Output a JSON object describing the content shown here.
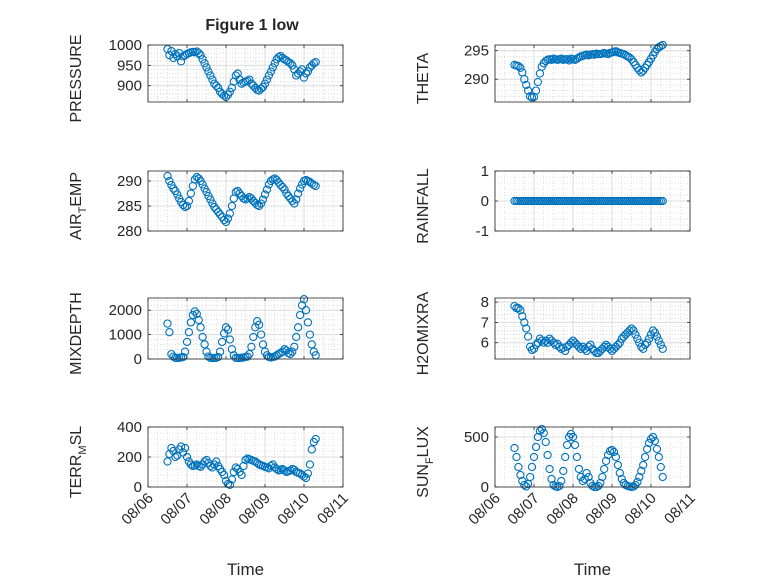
{
  "figure": {
    "title": "Figure 1 low"
  },
  "colors": {
    "marker": "#0072BD",
    "grid": "#dcdcdc",
    "axis": "#262626"
  },
  "x_ticks": [
    "08/06",
    "08/07",
    "08/08",
    "08/09",
    "08/10",
    "08/11"
  ],
  "chart_data": [
    {
      "id": "pressure",
      "type": "scatter",
      "ylabel": "PRESSURE",
      "xlabel": "",
      "ylim": [
        860,
        1000
      ],
      "yticks": [
        900,
        950,
        1000
      ],
      "grid": true,
      "minor_grid": true,
      "x": [
        6.5,
        6.55,
        6.6,
        6.65,
        6.7,
        6.75,
        6.8,
        6.85,
        6.9,
        6.95,
        7.0,
        7.05,
        7.1,
        7.15,
        7.2,
        7.25,
        7.3,
        7.35,
        7.4,
        7.45,
        7.5,
        7.55,
        7.6,
        7.65,
        7.7,
        7.75,
        7.8,
        7.85,
        7.9,
        7.95,
        8.0,
        8.05,
        8.1,
        8.15,
        8.2,
        8.25,
        8.3,
        8.35,
        8.4,
        8.45,
        8.5,
        8.55,
        8.6,
        8.65,
        8.7,
        8.75,
        8.8,
        8.85,
        8.9,
        8.95,
        9.0,
        9.05,
        9.1,
        9.15,
        9.2,
        9.25,
        9.3,
        9.35,
        9.4,
        9.45,
        9.5,
        9.55,
        9.6,
        9.65,
        9.7,
        9.75,
        9.8,
        9.85,
        9.9,
        9.95,
        10.0,
        10.05,
        10.1,
        10.15,
        10.2,
        10.25,
        10.3
      ],
      "y": [
        990,
        975,
        985,
        968,
        978,
        972,
        980,
        960,
        972,
        975,
        978,
        980,
        982,
        983,
        982,
        984,
        980,
        975,
        965,
        955,
        945,
        935,
        925,
        915,
        905,
        900,
        895,
        885,
        880,
        876,
        872,
        878,
        885,
        895,
        910,
        925,
        930,
        915,
        905,
        908,
        910,
        912,
        915,
        905,
        900,
        895,
        890,
        888,
        893,
        897,
        905,
        915,
        925,
        935,
        945,
        955,
        965,
        970,
        973,
        968,
        965,
        962,
        958,
        955,
        950,
        940,
        925,
        930,
        935,
        940,
        920,
        930,
        935,
        945,
        950,
        955,
        958
      ]
    },
    {
      "id": "theta",
      "type": "scatter",
      "ylabel": "THETA",
      "xlabel": "",
      "ylim": [
        286,
        296
      ],
      "yticks": [
        290,
        295
      ],
      "grid": true,
      "minor_grid": true,
      "x": [
        6.5,
        6.55,
        6.6,
        6.65,
        6.7,
        6.75,
        6.8,
        6.85,
        6.9,
        6.95,
        7.0,
        7.05,
        7.1,
        7.15,
        7.2,
        7.25,
        7.3,
        7.35,
        7.4,
        7.45,
        7.5,
        7.55,
        7.6,
        7.65,
        7.7,
        7.75,
        7.8,
        7.85,
        7.9,
        7.95,
        8.0,
        8.05,
        8.1,
        8.15,
        8.2,
        8.25,
        8.3,
        8.35,
        8.4,
        8.45,
        8.5,
        8.55,
        8.6,
        8.65,
        8.7,
        8.75,
        8.8,
        8.85,
        8.9,
        8.95,
        9.0,
        9.05,
        9.1,
        9.15,
        9.2,
        9.25,
        9.3,
        9.35,
        9.4,
        9.45,
        9.5,
        9.55,
        9.6,
        9.65,
        9.7,
        9.75,
        9.8,
        9.85,
        9.9,
        9.95,
        10.0,
        10.05,
        10.1,
        10.15,
        10.2,
        10.25,
        10.3
      ],
      "y": [
        292.5,
        292.4,
        292.3,
        292.0,
        291.2,
        290.0,
        289.0,
        288.0,
        287.0,
        286.8,
        286.9,
        288.0,
        289.5,
        291.0,
        292.2,
        292.8,
        293.2,
        293.4,
        293.5,
        293.4,
        293.6,
        293.5,
        293.4,
        293.5,
        293.6,
        293.4,
        293.5,
        293.5,
        293.3,
        293.6,
        293.5,
        293.4,
        293.6,
        293.8,
        294.0,
        294.1,
        294.2,
        294.3,
        294.2,
        294.3,
        294.4,
        294.3,
        294.5,
        294.4,
        294.4,
        294.5,
        294.6,
        294.5,
        294.4,
        294.6,
        294.7,
        294.8,
        294.9,
        294.7,
        294.6,
        294.5,
        294.4,
        294.2,
        294.0,
        293.8,
        293.5,
        293.0,
        292.5,
        292.0,
        291.6,
        291.2,
        291.5,
        292.0,
        292.5,
        293.0,
        293.6,
        294.2,
        294.8,
        295.3,
        295.6,
        295.8,
        296.0
      ]
    },
    {
      "id": "air-temp",
      "type": "scatter",
      "ylabel": "AIR_TEMP",
      "xlabel": "",
      "ylim": [
        280,
        292
      ],
      "yticks": [
        280,
        285,
        290
      ],
      "grid": true,
      "minor_grid": true,
      "x": [
        6.5,
        6.55,
        6.6,
        6.65,
        6.7,
        6.75,
        6.8,
        6.85,
        6.9,
        6.95,
        7.0,
        7.05,
        7.1,
        7.15,
        7.2,
        7.25,
        7.3,
        7.35,
        7.4,
        7.45,
        7.5,
        7.55,
        7.6,
        7.65,
        7.7,
        7.75,
        7.8,
        7.85,
        7.9,
        7.95,
        8.0,
        8.05,
        8.1,
        8.15,
        8.2,
        8.25,
        8.3,
        8.35,
        8.4,
        8.45,
        8.5,
        8.55,
        8.6,
        8.65,
        8.7,
        8.75,
        8.8,
        8.85,
        8.9,
        8.95,
        9.0,
        9.05,
        9.1,
        9.15,
        9.2,
        9.25,
        9.3,
        9.35,
        9.4,
        9.45,
        9.5,
        9.55,
        9.6,
        9.65,
        9.7,
        9.75,
        9.8,
        9.85,
        9.9,
        9.95,
        10.0,
        10.05,
        10.1,
        10.15,
        10.2,
        10.25,
        10.3
      ],
      "y": [
        291.0,
        290.0,
        289.2,
        288.5,
        288.0,
        287.3,
        286.5,
        285.8,
        285.2,
        284.8,
        285.0,
        286.0,
        287.5,
        289.0,
        290.3,
        290.8,
        290.5,
        290.0,
        289.3,
        288.5,
        287.8,
        287.0,
        286.3,
        285.5,
        284.8,
        284.3,
        283.8,
        283.3,
        282.8,
        282.2,
        281.8,
        282.5,
        283.5,
        285.0,
        286.5,
        287.8,
        288.0,
        287.5,
        287.0,
        286.5,
        286.3,
        286.5,
        286.8,
        286.5,
        286.0,
        285.6,
        285.2,
        285.0,
        285.5,
        286.3,
        287.3,
        288.3,
        289.3,
        290.0,
        290.3,
        290.5,
        290.2,
        289.7,
        289.2,
        288.8,
        288.3,
        287.5,
        287.0,
        286.5,
        286.0,
        285.5,
        286.3,
        287.5,
        288.5,
        289.3,
        290.0,
        290.2,
        290.0,
        289.8,
        289.5,
        289.2,
        289.0
      ]
    },
    {
      "id": "rainfall",
      "type": "scatter",
      "ylabel": "RAINFALL",
      "xlabel": "",
      "ylim": [
        -1,
        1
      ],
      "yticks": [
        -1,
        0,
        1
      ],
      "grid": true,
      "minor_grid": true,
      "x_start": 6.5,
      "x_end": 10.3,
      "x_step": 0.05,
      "constant_y": 0
    },
    {
      "id": "mixdepth",
      "type": "scatter",
      "ylabel": "MIXDEPTH",
      "xlabel": "",
      "ylim": [
        0,
        2500
      ],
      "yticks": [
        0,
        1000,
        2000
      ],
      "grid": true,
      "minor_grid": true,
      "x": [
        6.5,
        6.55,
        6.6,
        6.65,
        6.7,
        6.75,
        6.8,
        6.85,
        6.9,
        6.95,
        7.0,
        7.05,
        7.1,
        7.15,
        7.2,
        7.25,
        7.3,
        7.35,
        7.4,
        7.45,
        7.5,
        7.55,
        7.6,
        7.65,
        7.7,
        7.75,
        7.8,
        7.85,
        7.9,
        7.95,
        8.0,
        8.05,
        8.1,
        8.15,
        8.2,
        8.25,
        8.3,
        8.35,
        8.4,
        8.45,
        8.5,
        8.55,
        8.6,
        8.65,
        8.7,
        8.75,
        8.8,
        8.85,
        8.9,
        8.95,
        9.0,
        9.05,
        9.1,
        9.15,
        9.2,
        9.25,
        9.3,
        9.35,
        9.4,
        9.45,
        9.5,
        9.55,
        9.6,
        9.65,
        9.7,
        9.75,
        9.8,
        9.85,
        9.9,
        9.95,
        10.0,
        10.05,
        10.1,
        10.15,
        10.2,
        10.25,
        10.3
      ],
      "y": [
        1450,
        1100,
        200,
        100,
        50,
        40,
        50,
        60,
        80,
        300,
        700,
        1100,
        1500,
        1800,
        1950,
        1850,
        1600,
        1300,
        900,
        600,
        300,
        100,
        50,
        40,
        40,
        50,
        80,
        300,
        700,
        1050,
        1300,
        1200,
        800,
        400,
        150,
        50,
        40,
        40,
        50,
        60,
        80,
        100,
        200,
        500,
        900,
        1300,
        1550,
        1400,
        1000,
        600,
        300,
        150,
        80,
        60,
        80,
        100,
        150,
        200,
        250,
        300,
        400,
        350,
        250,
        200,
        300,
        500,
        900,
        1300,
        1800,
        2200,
        2450,
        2000,
        1500,
        1000,
        600,
        300,
        150
      ]
    },
    {
      "id": "h2omixra",
      "type": "scatter",
      "ylabel": "H2OMIXRA",
      "xlabel": "",
      "ylim": [
        5.2,
        8.2
      ],
      "yticks": [
        6,
        7,
        8
      ],
      "grid": true,
      "minor_grid": true,
      "x": [
        6.5,
        6.55,
        6.6,
        6.65,
        6.7,
        6.75,
        6.8,
        6.85,
        6.9,
        6.95,
        7.0,
        7.05,
        7.1,
        7.15,
        7.2,
        7.25,
        7.3,
        7.35,
        7.4,
        7.45,
        7.5,
        7.55,
        7.6,
        7.65,
        7.7,
        7.75,
        7.8,
        7.85,
        7.9,
        7.95,
        8.0,
        8.05,
        8.1,
        8.15,
        8.2,
        8.25,
        8.3,
        8.35,
        8.4,
        8.45,
        8.5,
        8.55,
        8.6,
        8.65,
        8.7,
        8.75,
        8.8,
        8.85,
        8.9,
        8.95,
        9.0,
        9.05,
        9.1,
        9.15,
        9.2,
        9.25,
        9.3,
        9.35,
        9.4,
        9.45,
        9.5,
        9.55,
        9.6,
        9.65,
        9.7,
        9.75,
        9.8,
        9.85,
        9.9,
        9.95,
        10.0,
        10.05,
        10.1,
        10.15,
        10.2,
        10.25,
        10.3
      ],
      "y": [
        7.8,
        7.7,
        7.7,
        7.6,
        7.3,
        7.0,
        6.7,
        6.3,
        5.8,
        5.65,
        5.7,
        5.9,
        6.0,
        6.2,
        6.1,
        6.0,
        6.1,
        6.0,
        6.2,
        6.1,
        6.0,
        5.9,
        5.95,
        5.8,
        5.7,
        5.75,
        5.6,
        5.8,
        5.9,
        6.0,
        6.1,
        6.0,
        5.9,
        5.8,
        5.7,
        5.8,
        5.7,
        5.6,
        5.8,
        5.9,
        5.7,
        5.6,
        5.5,
        5.5,
        5.6,
        5.7,
        5.8,
        5.9,
        5.8,
        5.7,
        5.6,
        5.7,
        5.8,
        5.9,
        6.0,
        6.2,
        6.3,
        6.4,
        6.5,
        6.6,
        6.7,
        6.6,
        6.4,
        6.2,
        6.0,
        5.8,
        5.7,
        5.9,
        6.0,
        6.2,
        6.4,
        6.6,
        6.5,
        6.3,
        6.1,
        5.9,
        5.7
      ]
    },
    {
      "id": "terr-msl",
      "type": "scatter",
      "ylabel": "TERR_MSL",
      "xlabel": "Time",
      "ylim": [
        0,
        400
      ],
      "yticks": [
        0,
        200,
        400
      ],
      "grid": true,
      "minor_grid": true,
      "x": [
        6.5,
        6.55,
        6.6,
        6.65,
        6.7,
        6.75,
        6.8,
        6.85,
        6.9,
        6.95,
        7.0,
        7.05,
        7.1,
        7.15,
        7.2,
        7.25,
        7.3,
        7.35,
        7.4,
        7.45,
        7.5,
        7.55,
        7.6,
        7.65,
        7.7,
        7.75,
        7.8,
        7.85,
        7.9,
        7.95,
        8.0,
        8.05,
        8.1,
        8.15,
        8.2,
        8.25,
        8.3,
        8.35,
        8.4,
        8.45,
        8.5,
        8.55,
        8.6,
        8.65,
        8.7,
        8.75,
        8.8,
        8.85,
        8.9,
        8.95,
        9.0,
        9.05,
        9.1,
        9.15,
        9.2,
        9.25,
        9.3,
        9.35,
        9.4,
        9.45,
        9.5,
        9.55,
        9.6,
        9.65,
        9.7,
        9.75,
        9.8,
        9.85,
        9.9,
        9.95,
        10.0,
        10.05,
        10.1,
        10.15,
        10.2,
        10.25,
        10.3
      ],
      "y": [
        170,
        220,
        260,
        240,
        200,
        210,
        250,
        270,
        230,
        260,
        200,
        170,
        150,
        140,
        145,
        150,
        140,
        135,
        150,
        170,
        180,
        160,
        140,
        130,
        150,
        170,
        140,
        120,
        100,
        80,
        40,
        20,
        15,
        50,
        100,
        130,
        120,
        100,
        80,
        140,
        180,
        190,
        185,
        180,
        175,
        170,
        160,
        150,
        145,
        140,
        135,
        130,
        125,
        140,
        150,
        130,
        120,
        110,
        115,
        120,
        110,
        100,
        105,
        110,
        120,
        115,
        100,
        95,
        90,
        80,
        70,
        60,
        90,
        150,
        250,
        300,
        320
      ]
    },
    {
      "id": "sun-flux",
      "type": "scatter",
      "ylabel": "SUN_FLUX",
      "xlabel": "Time",
      "ylim": [
        0,
        600
      ],
      "yticks": [
        0,
        500
      ],
      "grid": true,
      "minor_grid": true,
      "x": [
        6.5,
        6.55,
        6.6,
        6.65,
        6.7,
        6.75,
        6.8,
        6.85,
        6.9,
        6.95,
        7.0,
        7.05,
        7.1,
        7.15,
        7.2,
        7.25,
        7.3,
        7.35,
        7.4,
        7.45,
        7.5,
        7.55,
        7.6,
        7.65,
        7.7,
        7.75,
        7.8,
        7.85,
        7.9,
        7.95,
        8.0,
        8.05,
        8.1,
        8.15,
        8.2,
        8.25,
        8.3,
        8.35,
        8.4,
        8.45,
        8.5,
        8.55,
        8.6,
        8.65,
        8.7,
        8.75,
        8.8,
        8.85,
        8.9,
        8.95,
        9.0,
        9.05,
        9.1,
        9.15,
        9.2,
        9.25,
        9.3,
        9.35,
        9.4,
        9.45,
        9.5,
        9.55,
        9.6,
        9.65,
        9.7,
        9.75,
        9.8,
        9.85,
        9.9,
        9.95,
        10.0,
        10.05,
        10.1,
        10.15,
        10.2,
        10.25,
        10.3
      ],
      "y": [
        390,
        300,
        200,
        120,
        60,
        20,
        5,
        30,
        100,
        200,
        300,
        400,
        500,
        560,
        580,
        540,
        450,
        320,
        180,
        80,
        20,
        5,
        0,
        10,
        60,
        160,
        300,
        420,
        500,
        530,
        500,
        420,
        300,
        180,
        100,
        60,
        80,
        140,
        100,
        40,
        10,
        0,
        0,
        10,
        40,
        100,
        180,
        260,
        320,
        360,
        370,
        350,
        300,
        220,
        140,
        80,
        40,
        20,
        10,
        5,
        0,
        5,
        20,
        50,
        100,
        160,
        220,
        300,
        380,
        440,
        480,
        500,
        460,
        380,
        300,
        200,
        100
      ]
    }
  ]
}
